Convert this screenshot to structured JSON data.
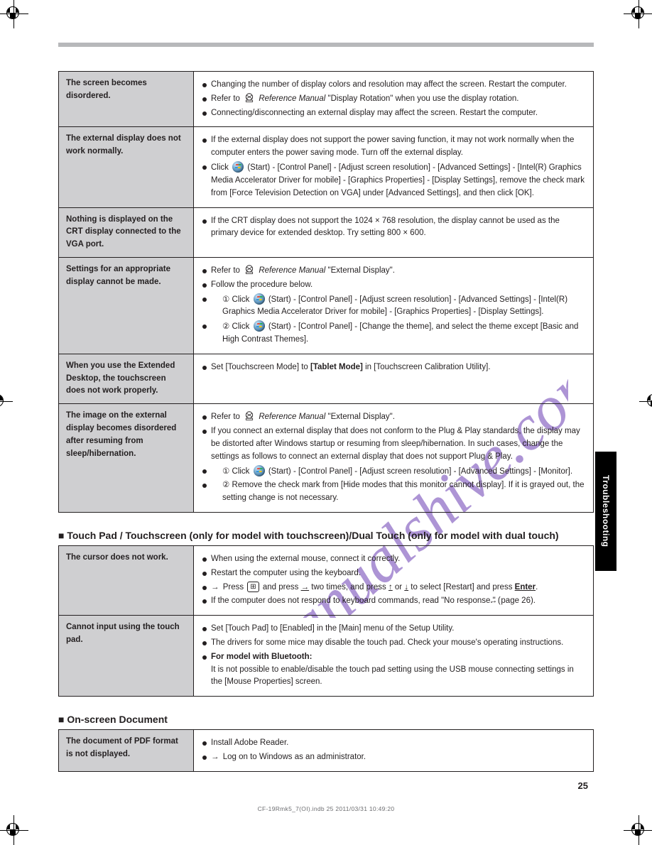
{
  "page": {
    "number": "25",
    "footer": "CF-19Rmk5_7(OI).indb   25   2011/03/31   10:49:20",
    "side_tab": "Troubleshooting"
  },
  "watermark_text": "manualshive.com",
  "colors": {
    "watermark": "#6a3db3",
    "label_bg": "#cfcfd1",
    "topbar": "#b7b8ba",
    "text": "#231f20"
  },
  "sections": [
    {
      "rows": [
        {
          "label": "The screen becomes disordered.",
          "items": [
            {
              "text_html": "Changing the number of display colors and resolution may affect the screen. Restart the computer."
            },
            {
              "text_html": "Refer to <span class='icon-ref' data-name='reference-manual-icon' data-interactable='false'><svg viewBox='0 0 20 18'><circle cx='10' cy='7' r='6' fill='none' stroke='#231f20' stroke-width='1.2'/><path d='M5 4 L15 10 M5 10 L15 4' stroke='#231f20' stroke-width='1'/><rect x='4' y='13' width='12' height='3' fill='none' stroke='#231f20' stroke-width='1'/></svg></span> <i>Reference Manual</i> \"Display Rotation\" when you use the display rotation."
            },
            {
              "text_html": "Connecting/disconnecting an external display may affect the screen. Restart the computer."
            }
          ]
        },
        {
          "label": "The external display does not work normally.",
          "items": [
            {
              "text_html": "If the external display does not support the power saving function, it may not work normally when the computer enters the power saving mode. Turn off the external display."
            },
            {
              "text_html": "Click <span class='icon-win' data-name='windows-start-icon' data-interactable='false'></span> (Start) - [Control Panel] - [Adjust screen resolution] - [Advanced Settings] - [Intel(R) Graphics Media Accelerator Driver for mobile] - [Graphics Properties] - [Display Settings], remove the check mark from [Force Television Detection on VGA] under [Advanced Settings], and then click [OK]."
            }
          ]
        },
        {
          "label": "Nothing is displayed on the CRT display connected to the VGA port.",
          "items": [
            {
              "text_html": "If the CRT display does not support the 1024 × 768 resolution, the display cannot be used as the primary device for extended desktop. Try setting 800 × 600."
            }
          ]
        },
        {
          "label": "Settings for an appropriate display cannot be made.",
          "items": [
            {
              "text_html": "Refer to <span class='icon-ref' data-name='reference-manual-icon' data-interactable='false'><svg viewBox='0 0 20 18'><circle cx='10' cy='7' r='6' fill='none' stroke='#231f20' stroke-width='1.2'/><path d='M5 4 L15 10 M5 10 L15 4' stroke='#231f20' stroke-width='1'/><rect x='4' y='13' width='12' height='3' fill='none' stroke='#231f20' stroke-width='1'/></svg></span> <i>Reference Manual</i> \"External Display\"."
            },
            {
              "text_html": "Follow the procedure below."
            },
            {
              "text_html": "<span class='sub'><span class='circnum'>①</span> Click <span class='icon-win' data-name='windows-start-icon' data-interactable='false'></span> (Start) - [Control Panel] - [Adjust screen resolution] - [Advanced Settings] - [Intel(R) Graphics Media Accelerator Driver for mobile] - [Graphics Properties] - [Display Settings].</span>"
            },
            {
              "text_html": "<span class='sub'><span class='circnum'>②</span> Click <span class='icon-win' data-name='windows-start-icon' data-interactable='false'></span> (Start) - [Control Panel] - [Change the theme], and select the theme except [Basic and High Contrast Themes].</span>"
            }
          ]
        },
        {
          "label": "When you use the Extended Desktop, the touchscreen does not work properly.",
          "items": [
            {
              "text_html": "Set [Touchscreen Mode] to <b>[Tablet Mode]</b> in [Touchscreen Calibration Utility]."
            }
          ]
        },
        {
          "label": "The image on the external display becomes disordered after resuming from sleep/hibernation.",
          "items": [
            {
              "text_html": "Refer to <span class='icon-ref' data-name='reference-manual-icon' data-interactable='false'><svg viewBox='0 0 20 18'><circle cx='10' cy='7' r='6' fill='none' stroke='#231f20' stroke-width='1.2'/><path d='M5 4 L15 10 M5 10 L15 4' stroke='#231f20' stroke-width='1'/><rect x='4' y='13' width='12' height='3' fill='none' stroke='#231f20' stroke-width='1'/></svg></span> <i>Reference Manual</i> \"External Display\"."
            },
            {
              "text_html": "If you connect an external display that does not conform to the Plug &amp; Play standards, the display may be distorted after Windows startup or resuming from sleep/hibernation. In such cases, change the settings as follows to connect an external display that does not support Plug &amp; Play."
            },
            {
              "text_html": "<span class='sub'><span class='circnum'>①</span> Click <span class='icon-win' data-name='windows-start-icon' data-interactable='false'></span> (Start) - [Control Panel] - [Adjust screen resolution] - [Advanced Settings] - [Monitor].</span>"
            },
            {
              "text_html": "<span class='sub'><span class='circnum'>②</span> Remove the check mark from [Hide modes that this monitor cannot display]. If it is grayed out, the setting change is not necessary.</span>"
            }
          ]
        }
      ]
    },
    {
      "caption": "■ Touch Pad / Touchscreen (only for model with touchscreen)/Dual Touch (only for model with dual touch)",
      "rows": [
        {
          "label": "The cursor does not work.",
          "items": [
            {
              "text_html": "When using the external mouse, connect it correctly."
            },
            {
              "text_html": "Restart the computer using the keyboard."
            },
            {
              "text_html": "<span class='sub arrow'>Press <span class='keycap' data-name='keycap-win-icon' data-interactable='false'>⊞</span> and press <span class='ul'>→</span> two times, and press <span class='ul'>↑</span> or <span class='ul'>↓</span> to select [Restart] and press <b><span class='ul'>Enter</span></b>.</span>"
            },
            {
              "text_html": "If the computer does not respond to keyboard commands, read \"No response.\" (<span class='arrow'></span> page 26)."
            }
          ]
        },
        {
          "label": "Cannot input using the touch pad.",
          "items": [
            {
              "text_html": "Set [Touch Pad] to [Enabled] in the [Main] menu of the Setup Utility."
            },
            {
              "text_html": "The drivers for some mice may disable the touch pad. Check your mouse's operating instructions."
            },
            {
              "text_html": "<b>For model with Bluetooth:</b><br>It is not possible to enable/disable the touch pad setting using the USB mouse connecting settings in the [Mouse Properties] screen."
            }
          ]
        }
      ]
    },
    {
      "caption": "■ On-screen Document",
      "rows": [
        {
          "label": "The document of PDF format is not displayed.",
          "items": [
            {
              "text_html": "Install Adobe Reader."
            },
            {
              "text_html": "<span class='sub arrow'>Log on to Windows as an administrator.</span>"
            }
          ]
        }
      ]
    }
  ]
}
